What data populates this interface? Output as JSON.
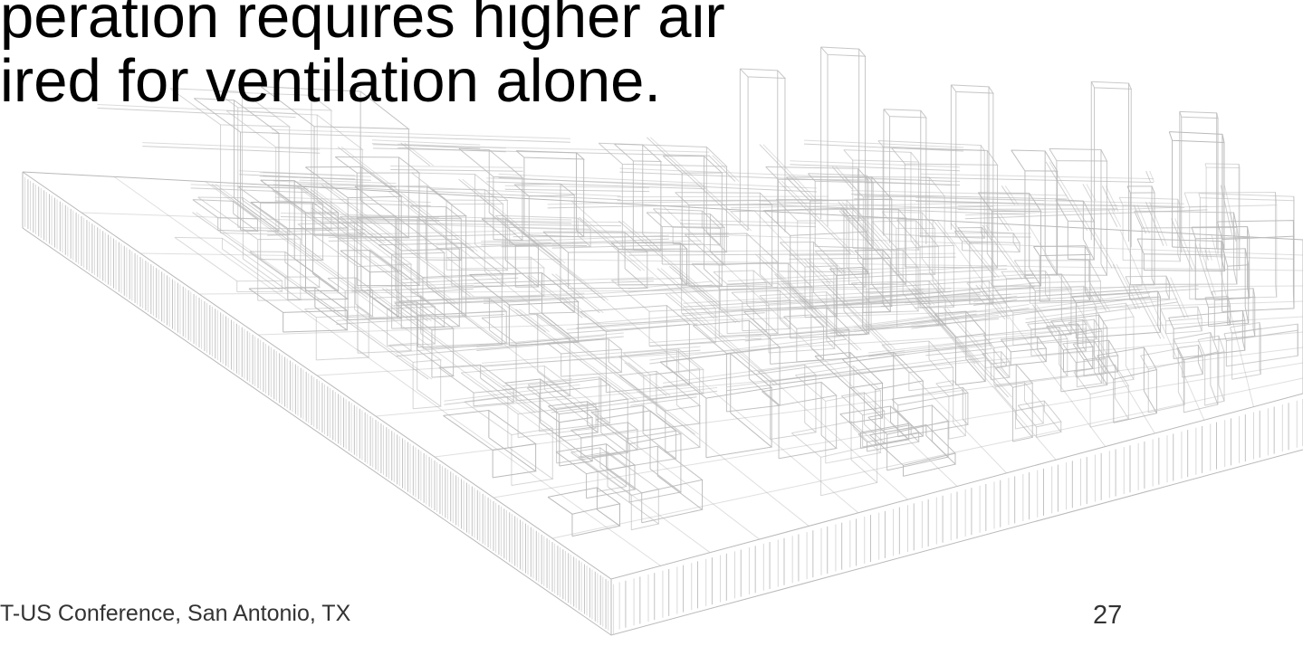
{
  "slide": {
    "body_lines": [
      "peration requires higher air",
      "ired for ventilation alone."
    ],
    "footer_text": "T-US Conference, San Antonio, TX",
    "page_number": "27",
    "illustration": {
      "icon": "wireframe-3d-building-plan",
      "line_color": "#b9b9b9"
    }
  }
}
